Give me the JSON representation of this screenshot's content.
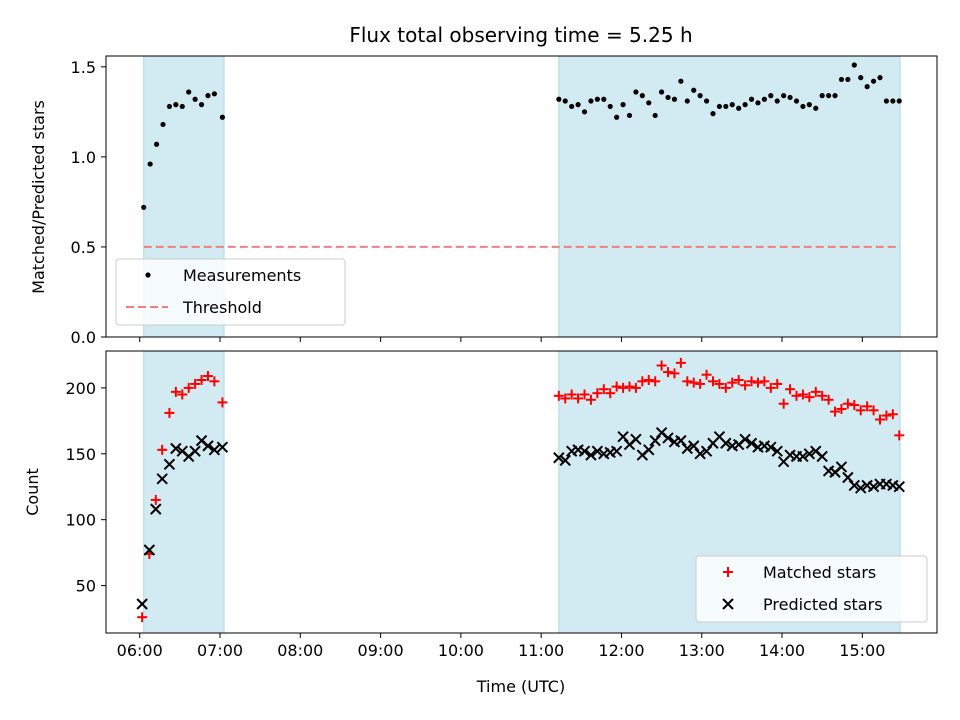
{
  "chart_data": [
    {
      "type": "scatter",
      "title": "Flux total observing time = 5.25 h",
      "xlabel": "",
      "ylabel": "Matched/Predicted stars",
      "x_ticks": [
        "06:00",
        "07:00",
        "08:00",
        "09:00",
        "10:00",
        "11:00",
        "12:00",
        "13:00",
        "14:00",
        "15:00"
      ],
      "y_ticks": [
        "0.0",
        "0.5",
        "1.0",
        "1.5"
      ],
      "ylim": [
        0,
        1.56
      ],
      "xlim_hours": [
        5.58,
        15.93
      ],
      "observing_windows": [
        [
          6.05,
          7.05
        ],
        [
          11.22,
          15.47
        ]
      ],
      "window_color": "#add8e6",
      "threshold": 0.5,
      "threshold_color": "#f08080",
      "legend": {
        "placement": "lower-left",
        "entries": [
          "Measurements",
          "Threshold"
        ]
      },
      "series": [
        {
          "name": "Measurements",
          "color": "#000000",
          "x": [
            6.05,
            6.13,
            6.21,
            6.29,
            6.37,
            6.45,
            6.53,
            6.61,
            6.69,
            6.77,
            6.85,
            6.93,
            7.03,
            11.22,
            11.3,
            11.38,
            11.46,
            11.54,
            11.62,
            11.7,
            11.78,
            11.86,
            11.94,
            12.02,
            12.1,
            12.18,
            12.26,
            12.34,
            12.42,
            12.5,
            12.58,
            12.66,
            12.74,
            12.82,
            12.9,
            12.98,
            13.06,
            13.14,
            13.22,
            13.3,
            13.38,
            13.46,
            13.54,
            13.62,
            13.7,
            13.78,
            13.86,
            13.94,
            14.02,
            14.1,
            14.18,
            14.26,
            14.34,
            14.42,
            14.5,
            14.58,
            14.66,
            14.74,
            14.82,
            14.9,
            14.98,
            15.06,
            15.14,
            15.22,
            15.3,
            15.38,
            15.46
          ],
          "y": [
            0.72,
            0.96,
            1.07,
            1.18,
            1.28,
            1.29,
            1.28,
            1.36,
            1.32,
            1.29,
            1.34,
            1.35,
            1.22,
            1.32,
            1.31,
            1.28,
            1.29,
            1.25,
            1.31,
            1.32,
            1.32,
            1.28,
            1.22,
            1.29,
            1.23,
            1.36,
            1.34,
            1.3,
            1.23,
            1.36,
            1.33,
            1.32,
            1.42,
            1.31,
            1.37,
            1.34,
            1.31,
            1.24,
            1.28,
            1.28,
            1.29,
            1.27,
            1.29,
            1.32,
            1.3,
            1.32,
            1.34,
            1.31,
            1.34,
            1.33,
            1.31,
            1.28,
            1.29,
            1.27,
            1.34,
            1.34,
            1.34,
            1.43,
            1.43,
            1.51,
            1.44,
            1.39,
            1.42,
            1.44,
            1.31,
            1.31,
            1.31
          ]
        }
      ]
    },
    {
      "type": "scatter",
      "title": "",
      "xlabel": "Time (UTC)",
      "ylabel": "Count",
      "x_ticks": [
        "06:00",
        "07:00",
        "08:00",
        "09:00",
        "10:00",
        "11:00",
        "12:00",
        "13:00",
        "14:00",
        "15:00"
      ],
      "y_ticks": [
        "50",
        "100",
        "150",
        "200"
      ],
      "ylim": [
        14,
        228
      ],
      "xlim_hours": [
        5.58,
        15.93
      ],
      "observing_windows": [
        [
          6.05,
          7.05
        ],
        [
          11.22,
          15.47
        ]
      ],
      "window_color": "#add8e6",
      "legend": {
        "placement": "lower-right",
        "entries": [
          "Matched stars",
          "Predicted stars"
        ]
      },
      "series": [
        {
          "name": "Matched stars",
          "color": "#ff0000",
          "marker": "plus",
          "x": [
            6.03,
            6.12,
            6.2,
            6.28,
            6.37,
            6.45,
            6.53,
            6.61,
            6.69,
            6.77,
            6.85,
            6.93,
            7.03,
            11.22,
            11.3,
            11.38,
            11.46,
            11.54,
            11.62,
            11.7,
            11.78,
            11.86,
            11.94,
            12.02,
            12.1,
            12.18,
            12.26,
            12.34,
            12.42,
            12.5,
            12.58,
            12.66,
            12.74,
            12.82,
            12.9,
            12.98,
            13.06,
            13.14,
            13.22,
            13.3,
            13.38,
            13.46,
            13.54,
            13.62,
            13.7,
            13.78,
            13.86,
            13.94,
            14.02,
            14.1,
            14.18,
            14.26,
            14.34,
            14.42,
            14.5,
            14.58,
            14.66,
            14.74,
            14.82,
            14.9,
            14.98,
            15.06,
            15.14,
            15.22,
            15.3,
            15.38,
            15.46
          ],
          "y": [
            26,
            74,
            115,
            153,
            181,
            197,
            195,
            200,
            203,
            206,
            209,
            205,
            189,
            194,
            192,
            195,
            192,
            195,
            191,
            196,
            199,
            196,
            201,
            200,
            201,
            200,
            205,
            206,
            205,
            217,
            212,
            211,
            219,
            205,
            204,
            203,
            210,
            205,
            203,
            200,
            204,
            206,
            202,
            205,
            204,
            205,
            200,
            203,
            188,
            199,
            194,
            195,
            193,
            197,
            194,
            191,
            182,
            184,
            188,
            187,
            183,
            186,
            183,
            176,
            179,
            180,
            164
          ]
        },
        {
          "name": "Predicted stars",
          "color": "#000000",
          "marker": "cross",
          "x": [
            6.03,
            6.12,
            6.2,
            6.28,
            6.37,
            6.45,
            6.53,
            6.61,
            6.69,
            6.77,
            6.85,
            6.93,
            7.03,
            11.22,
            11.3,
            11.38,
            11.46,
            11.54,
            11.62,
            11.7,
            11.78,
            11.86,
            11.94,
            12.02,
            12.1,
            12.18,
            12.26,
            12.34,
            12.42,
            12.5,
            12.58,
            12.66,
            12.74,
            12.82,
            12.9,
            12.98,
            13.06,
            13.14,
            13.22,
            13.3,
            13.38,
            13.46,
            13.54,
            13.62,
            13.7,
            13.78,
            13.86,
            13.94,
            14.02,
            14.1,
            14.18,
            14.26,
            14.34,
            14.42,
            14.5,
            14.58,
            14.66,
            14.74,
            14.82,
            14.9,
            14.98,
            15.06,
            15.14,
            15.22,
            15.3,
            15.38,
            15.46
          ],
          "y": [
            36,
            77,
            108,
            131,
            142,
            154,
            152,
            148,
            152,
            160,
            156,
            153,
            155,
            147,
            145,
            152,
            153,
            152,
            149,
            152,
            150,
            151,
            152,
            163,
            157,
            161,
            149,
            153,
            160,
            166,
            162,
            159,
            160,
            154,
            156,
            150,
            152,
            158,
            163,
            158,
            156,
            157,
            161,
            158,
            155,
            156,
            155,
            152,
            144,
            149,
            148,
            148,
            150,
            152,
            148,
            137,
            136,
            140,
            132,
            126,
            124,
            126,
            125,
            127,
            127,
            126,
            125
          ]
        }
      ]
    }
  ]
}
